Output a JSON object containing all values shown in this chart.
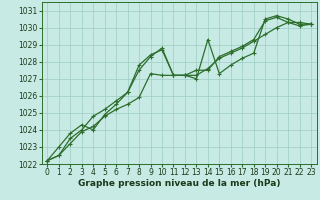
{
  "title": "",
  "xlabel": "Graphe pression niveau de la mer (hPa)",
  "ylabel": "",
  "bg_color": "#c8eae4",
  "plot_bg_color": "#c8eae4",
  "grid_color": "#9dccc4",
  "line_color": "#2d6e2d",
  "marker_color": "#2d6e2d",
  "xlim": [
    -0.5,
    23.5
  ],
  "ylim": [
    1022,
    1031.5
  ],
  "yticks": [
    1022,
    1023,
    1024,
    1025,
    1026,
    1027,
    1028,
    1029,
    1030,
    1031
  ],
  "xticks": [
    0,
    1,
    2,
    3,
    4,
    5,
    6,
    7,
    8,
    9,
    10,
    11,
    12,
    13,
    14,
    15,
    16,
    17,
    18,
    19,
    20,
    21,
    22,
    23
  ],
  "xlabel_fontsize": 6.5,
  "xlabel_color": "#1a3a1a",
  "tick_fontsize": 5.5,
  "series1": {
    "x": [
      0,
      1,
      2,
      3,
      4,
      5,
      6,
      7,
      8,
      9,
      10,
      11,
      12,
      13,
      14,
      15,
      16,
      17,
      18,
      19,
      20,
      21,
      22,
      23
    ],
    "y": [
      1022.2,
      1022.5,
      1023.2,
      1023.9,
      1024.2,
      1024.8,
      1025.2,
      1025.5,
      1025.9,
      1027.3,
      1027.2,
      1027.2,
      1027.2,
      1027.2,
      1027.6,
      1028.2,
      1028.5,
      1028.8,
      1029.2,
      1029.6,
      1030.0,
      1030.3,
      1030.3,
      1030.2
    ]
  },
  "series2": {
    "x": [
      0,
      1,
      2,
      3,
      4,
      5,
      6,
      7,
      8,
      9,
      10,
      11,
      12,
      13,
      14,
      15,
      16,
      17,
      18,
      19,
      20,
      21,
      22,
      23
    ],
    "y": [
      1022.2,
      1023.0,
      1023.8,
      1024.3,
      1024.0,
      1024.9,
      1025.5,
      1026.2,
      1027.8,
      1028.4,
      1028.7,
      1027.2,
      1027.2,
      1027.0,
      1029.3,
      1027.3,
      1027.8,
      1028.2,
      1028.5,
      1030.5,
      1030.7,
      1030.5,
      1030.2,
      1030.2
    ]
  },
  "series3": {
    "x": [
      0,
      1,
      2,
      3,
      4,
      5,
      6,
      7,
      8,
      9,
      10,
      11,
      12,
      13,
      14,
      15,
      16,
      17,
      18,
      19,
      20,
      21,
      22,
      23
    ],
    "y": [
      1022.2,
      1022.5,
      1023.5,
      1024.0,
      1024.8,
      1025.2,
      1025.7,
      1026.2,
      1027.5,
      1028.3,
      1028.8,
      1027.2,
      1027.2,
      1027.5,
      1027.5,
      1028.3,
      1028.6,
      1028.9,
      1029.3,
      1030.4,
      1030.6,
      1030.3,
      1030.1,
      1030.2
    ]
  }
}
